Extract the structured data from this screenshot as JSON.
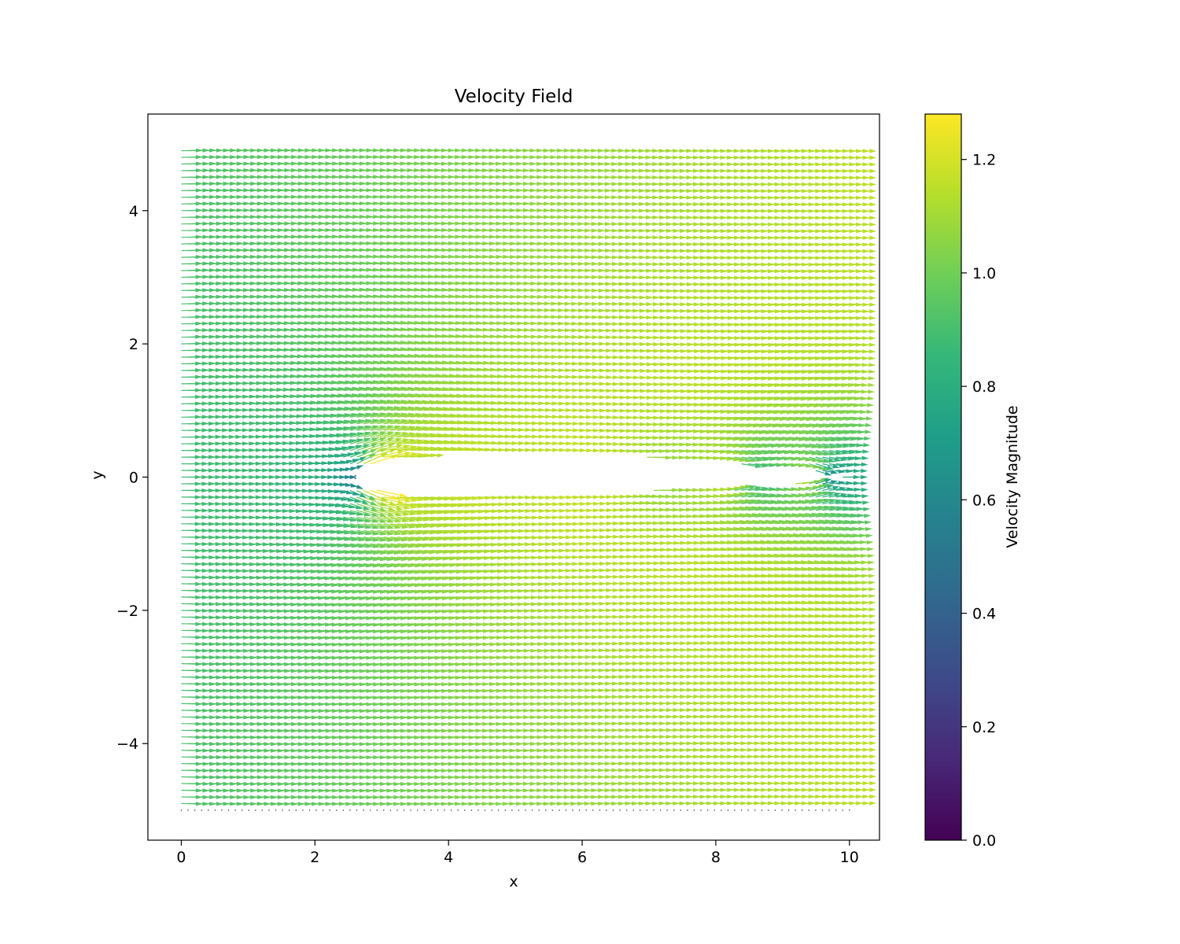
{
  "chart_data": {
    "type": "quiver",
    "title": "Velocity Field",
    "xlabel": "x",
    "ylabel": "y",
    "xlim": [
      -0.5,
      10.45
    ],
    "ylim": [
      -5.45,
      5.45
    ],
    "xticks": [
      0,
      2,
      4,
      6,
      8,
      10
    ],
    "yticks": [
      -4,
      -2,
      0,
      2,
      4
    ],
    "xtick_labels": [
      "0",
      "2",
      "4",
      "6",
      "8",
      "10"
    ],
    "ytick_labels": [
      "−4",
      "−2",
      "0",
      "2",
      "4"
    ],
    "grid": {
      "x": [
        0,
        10
      ],
      "y": [
        -5,
        4.9
      ],
      "nx": 100,
      "ny": 100
    },
    "freestream_velocity": 1.0,
    "airfoil": {
      "leading_edge": [
        2.6,
        0.0
      ],
      "trailing_edge": [
        9.8,
        0.0
      ],
      "max_half_thickness": 0.5
    },
    "field_notes": "uniform flow in +x direction with stagnation near leading edge and wake behind body",
    "colorbar": {
      "label": "Velocity Magnitude",
      "colormap": "viridis",
      "vmin": 0.0,
      "vmax": 1.28,
      "ticks": [
        0.0,
        0.2,
        0.4,
        0.6,
        0.8,
        1.0,
        1.2
      ],
      "tick_labels": [
        "0.0",
        "0.2",
        "0.4",
        "0.6",
        "0.8",
        "1.0",
        "1.2"
      ]
    }
  }
}
